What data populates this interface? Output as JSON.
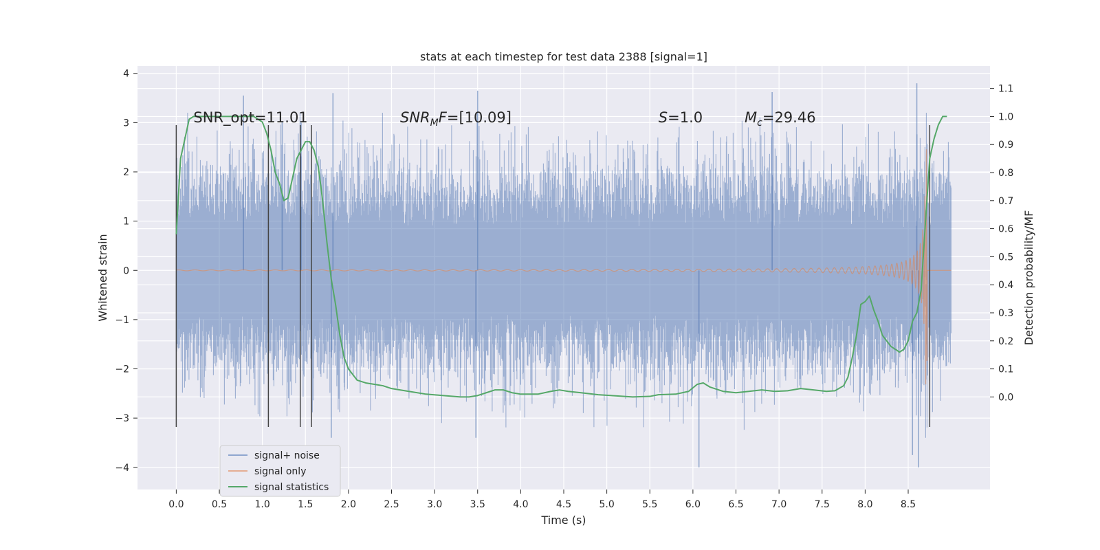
{
  "chart_data": {
    "type": "line",
    "title": "stats at each timestep for test data 2388 [signal=1]",
    "xlabel": "Time (s)",
    "ylabel": "Whitened strain",
    "y2label": "Detection probability/MF",
    "xlim": [
      -0.45,
      9.45
    ],
    "ylim": [
      -4.45,
      4.15
    ],
    "y2lim": [
      -0.33,
      1.18
    ],
    "xticks": [
      0.0,
      0.5,
      1.0,
      1.5,
      2.0,
      2.5,
      3.0,
      3.5,
      4.0,
      4.5,
      5.0,
      5.5,
      6.0,
      6.5,
      7.0,
      7.5,
      8.0,
      8.5
    ],
    "xtick_labels": [
      "0.0",
      "0.5",
      "1.0",
      "1.5",
      "2.0",
      "2.5",
      "3.0",
      "3.5",
      "4.0",
      "4.5",
      "5.0",
      "5.5",
      "6.0",
      "6.5",
      "7.0",
      "7.5",
      "8.0",
      "8.5"
    ],
    "yticks": [
      -4,
      -3,
      -2,
      -1,
      0,
      1,
      2,
      3,
      4
    ],
    "ytick_labels": [
      "−4",
      "−3",
      "−2",
      "−1",
      "0",
      "1",
      "2",
      "3",
      "4"
    ],
    "y2ticks": [
      0.0,
      0.1,
      0.2,
      0.3,
      0.4,
      0.5,
      0.6,
      0.7,
      0.8,
      0.9,
      1.0,
      1.1
    ],
    "y2tick_labels": [
      "0.0",
      "0.1",
      "0.2",
      "0.3",
      "0.4",
      "0.5",
      "0.6",
      "0.7",
      "0.8",
      "0.9",
      "1.0",
      "1.1"
    ],
    "grid": true,
    "legend_position": "lower-left",
    "series": [
      {
        "name": "signal+ noise",
        "color": "#4c72b0",
        "axis": "left",
        "description": "whitened noise plus signal, approx. 0 to 9.0 s, amplitude mostly within ±2.5",
        "x_range": [
          0.0,
          9.0
        ],
        "spikes": [
          {
            "x": 0.78,
            "y": 3.55
          },
          {
            "x": 1.23,
            "y": 3.02
          },
          {
            "x": 1.45,
            "y": 3.0
          },
          {
            "x": 1.82,
            "y": 3.6
          },
          {
            "x": 1.8,
            "y": -3.4
          },
          {
            "x": 3.5,
            "y": 3.65
          },
          {
            "x": 3.48,
            "y": -3.4
          },
          {
            "x": 6.07,
            "y": -4.0
          },
          {
            "x": 6.92,
            "y": 3.62
          },
          {
            "x": 8.55,
            "y": -3.75
          },
          {
            "x": 8.6,
            "y": 3.8
          },
          {
            "x": 8.62,
            "y": -4.0
          }
        ]
      },
      {
        "name": "signal only",
        "color": "#dd8452",
        "axis": "left",
        "description": "gravitational-wave chirp, flat near 0 until ~5.5 s, growing to about ±2.5 at 8.65 s"
      },
      {
        "name": "signal statistics",
        "color": "#55a868",
        "axis": "right",
        "x": [
          0.0,
          0.05,
          0.1,
          0.15,
          0.2,
          0.3,
          0.4,
          0.5,
          0.6,
          0.7,
          0.8,
          0.9,
          0.95,
          1.0,
          1.05,
          1.1,
          1.15,
          1.2,
          1.25,
          1.3,
          1.35,
          1.4,
          1.45,
          1.5,
          1.55,
          1.6,
          1.65,
          1.7,
          1.75,
          1.8,
          1.85,
          1.9,
          1.95,
          2.0,
          2.05,
          2.1,
          2.2,
          2.3,
          2.4,
          2.5,
          2.7,
          2.9,
          3.1,
          3.3,
          3.4,
          3.5,
          3.6,
          3.7,
          3.8,
          3.9,
          4.0,
          4.2,
          4.35,
          4.45,
          4.55,
          4.7,
          4.9,
          5.1,
          5.3,
          5.5,
          5.6,
          5.8,
          5.95,
          6.05,
          6.12,
          6.2,
          6.35,
          6.5,
          6.65,
          6.8,
          6.95,
          7.1,
          7.25,
          7.4,
          7.55,
          7.65,
          7.75,
          7.8,
          7.85,
          7.9,
          7.95,
          8.0,
          8.05,
          8.1,
          8.15,
          8.2,
          8.25,
          8.3,
          8.35,
          8.4,
          8.45,
          8.5,
          8.55,
          8.6,
          8.65,
          8.7,
          8.75,
          8.8,
          8.85,
          8.9,
          8.95
        ],
        "values": [
          0.58,
          0.85,
          0.92,
          0.99,
          1.0,
          1.0,
          1.0,
          1.0,
          1.0,
          1.0,
          1.0,
          1.0,
          0.99,
          0.98,
          0.94,
          0.88,
          0.8,
          0.76,
          0.7,
          0.71,
          0.78,
          0.85,
          0.88,
          0.91,
          0.91,
          0.88,
          0.82,
          0.7,
          0.55,
          0.42,
          0.33,
          0.22,
          0.14,
          0.1,
          0.08,
          0.06,
          0.05,
          0.045,
          0.04,
          0.03,
          0.02,
          0.01,
          0.005,
          0.0,
          0.0,
          0.005,
          0.015,
          0.025,
          0.025,
          0.015,
          0.01,
          0.01,
          0.02,
          0.025,
          0.02,
          0.015,
          0.008,
          0.004,
          0.0,
          0.002,
          0.008,
          0.01,
          0.02,
          0.045,
          0.05,
          0.035,
          0.02,
          0.015,
          0.02,
          0.025,
          0.02,
          0.022,
          0.03,
          0.025,
          0.02,
          0.022,
          0.04,
          0.07,
          0.14,
          0.22,
          0.33,
          0.34,
          0.36,
          0.31,
          0.27,
          0.22,
          0.2,
          0.18,
          0.17,
          0.16,
          0.17,
          0.2,
          0.27,
          0.3,
          0.38,
          0.62,
          0.85,
          0.92,
          0.97,
          1.0,
          1.0
        ]
      }
    ],
    "vlines": [
      0.0,
      1.07,
      1.44,
      1.57,
      8.75
    ],
    "vline_color": "#444444",
    "annotations": [
      {
        "text": "SNR_opt=11.01",
        "x": 0.2
      },
      {
        "text": "=[10.09]",
        "x": 2.6,
        "math_prefix": "SNR",
        "math_sub": "M",
        "math_tail": "F"
      },
      {
        "text": "=1.0",
        "x": 5.6,
        "math_prefix": "S"
      },
      {
        "text": "=29.46",
        "x": 6.6,
        "math_prefix": "M",
        "math_sub": "c"
      }
    ]
  }
}
